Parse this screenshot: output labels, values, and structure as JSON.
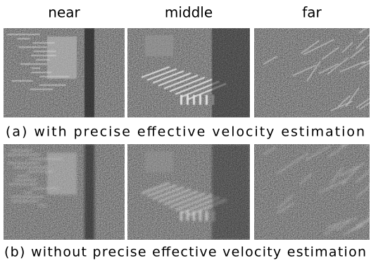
{
  "column_labels": [
    "near",
    "middle",
    "far"
  ],
  "rows": [
    {
      "caption": "(a) with precise effective velocity estimation"
    },
    {
      "caption": "(b) without precise effective velocity estimation"
    }
  ]
}
